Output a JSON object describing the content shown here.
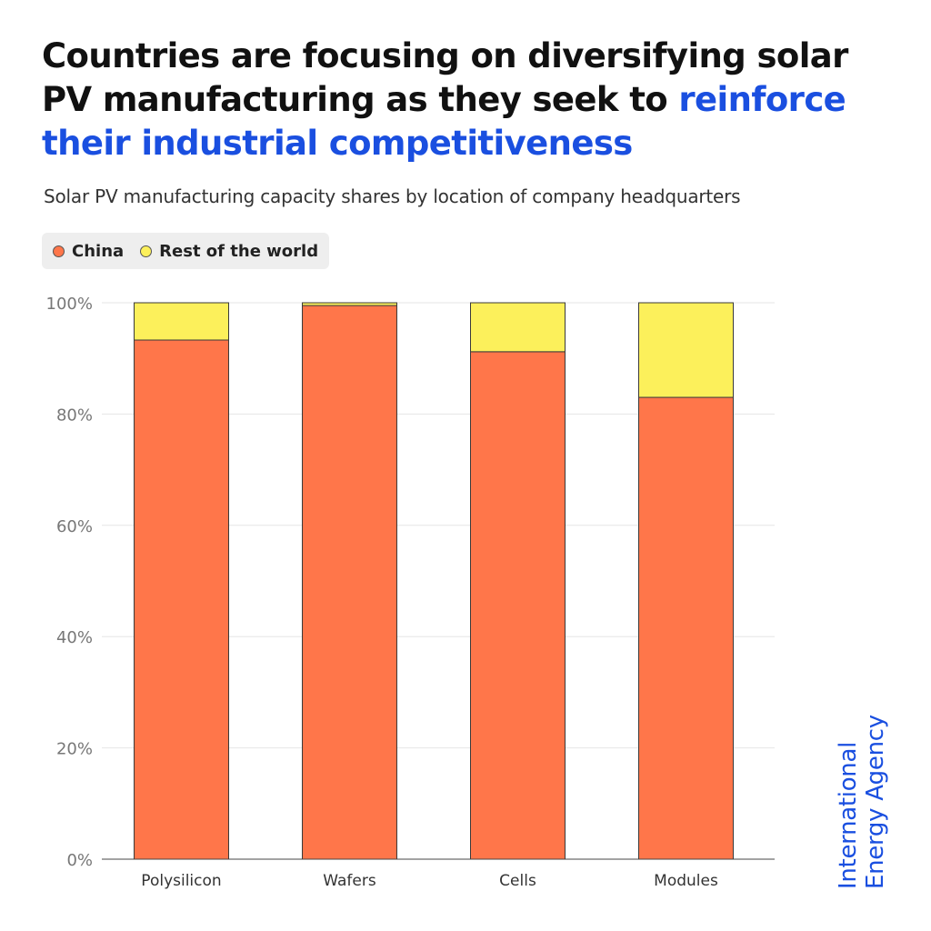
{
  "header": {
    "title_plain": "Countries are focusing on diversifying solar PV manufacturing as they seek to ",
    "title_highlight": "reinforce their industrial competitiveness",
    "subtitle": "Solar PV manufacturing capacity shares by location of company headquarters"
  },
  "brand": {
    "line1": "International",
    "line2": "Energy Agency",
    "color": "#1a4fe0"
  },
  "chart_data": {
    "type": "bar",
    "stacked": true,
    "title": "Solar PV manufacturing capacity shares by location of company headquarters",
    "xlabel": "",
    "ylabel": "",
    "categories": [
      "Polysilicon",
      "Wafers",
      "Cells",
      "Modules"
    ],
    "series": [
      {
        "name": "China",
        "color": "#ff764a",
        "values": [
          93.3,
          99.5,
          91.2,
          83.0
        ]
      },
      {
        "name": "Rest of the world",
        "color": "#fcf05b",
        "values": [
          6.7,
          0.5,
          8.8,
          17.0
        ]
      }
    ],
    "ylim": [
      0,
      100
    ],
    "yticks": [
      0,
      20,
      40,
      60,
      80,
      100
    ],
    "ytick_labels": [
      "0%",
      "20%",
      "40%",
      "60%",
      "80%",
      "100%"
    ],
    "grid": true,
    "legend_position": "top-left"
  }
}
